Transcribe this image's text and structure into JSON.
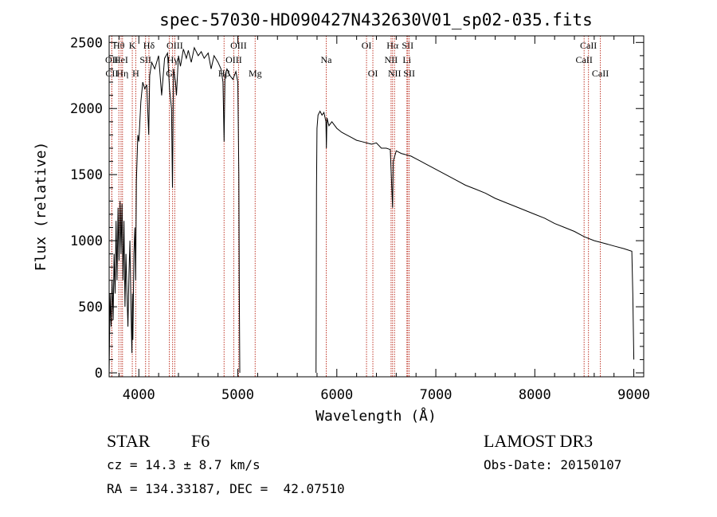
{
  "chart_data": {
    "type": "line",
    "title": "spec-57030-HD090427N432630V01_sp02-035.fits",
    "xlabel": "Wavelength (Å)",
    "ylabel": "Flux (relative)",
    "xlim": [
      3700,
      9100
    ],
    "ylim": [
      -30,
      2550
    ],
    "xticks": [
      4000,
      5000,
      6000,
      7000,
      8000,
      9000
    ],
    "yticks": [
      0,
      500,
      1000,
      1500,
      2000,
      2500
    ],
    "grid": false,
    "series": [
      {
        "name": "spectrum-blue",
        "x": [
          3700,
          3710,
          3720,
          3730,
          3740,
          3750,
          3760,
          3770,
          3780,
          3790,
          3800,
          3810,
          3820,
          3830,
          3840,
          3850,
          3860,
          3870,
          3880,
          3890,
          3900,
          3910,
          3920,
          3930,
          3935,
          3940,
          3950,
          3960,
          3968,
          3975,
          3990,
          4000,
          4020,
          4040,
          4060,
          4080,
          4100,
          4110,
          4130,
          4160,
          4200,
          4230,
          4260,
          4290,
          4310,
          4330,
          4340,
          4350,
          4370,
          4380,
          4400,
          4420,
          4450,
          4480,
          4500,
          4530,
          4560,
          4600,
          4630,
          4660,
          4700,
          4730,
          4760,
          4800,
          4830,
          4850,
          4861,
          4870,
          4890,
          4920,
          4950,
          4980,
          5000,
          5010,
          5015,
          5020
        ],
        "y": [
          0,
          600,
          350,
          700,
          400,
          900,
          600,
          1150,
          700,
          1250,
          850,
          1300,
          900,
          1280,
          700,
          1150,
          500,
          900,
          600,
          350,
          750,
          1000,
          500,
          150,
          600,
          250,
          900,
          1100,
          700,
          1450,
          1800,
          1750,
          2050,
          2200,
          2150,
          2180,
          1800,
          2250,
          2350,
          2300,
          2400,
          2100,
          2380,
          2420,
          2150,
          2000,
          1400,
          2300,
          2200,
          2100,
          2400,
          2320,
          2450,
          2380,
          2440,
          2350,
          2460,
          2400,
          2430,
          2380,
          2420,
          2300,
          2400,
          2350,
          2300,
          2200,
          1750,
          2250,
          2300,
          2250,
          2220,
          2280,
          2200,
          1500,
          600,
          0
        ]
      },
      {
        "name": "spectrum-red",
        "x": [
          5790,
          5795,
          5800,
          5810,
          5830,
          5850,
          5870,
          5890,
          5895,
          5900,
          5920,
          5950,
          6000,
          6050,
          6100,
          6150,
          6200,
          6250,
          6300,
          6350,
          6400,
          6450,
          6500,
          6540,
          6555,
          6563,
          6570,
          6600,
          6650,
          6700,
          6750,
          6800,
          6850,
          6900,
          7000,
          7100,
          7200,
          7300,
          7400,
          7500,
          7600,
          7700,
          7800,
          7900,
          8000,
          8100,
          8200,
          8300,
          8400,
          8500,
          8600,
          8700,
          8800,
          8900,
          8980,
          8990,
          9000
        ],
        "y": [
          0,
          1400,
          1850,
          1950,
          1980,
          1950,
          1970,
          1900,
          1700,
          1930,
          1870,
          1900,
          1850,
          1820,
          1800,
          1780,
          1760,
          1750,
          1740,
          1730,
          1740,
          1700,
          1700,
          1690,
          1400,
          1250,
          1600,
          1680,
          1660,
          1650,
          1640,
          1620,
          1600,
          1580,
          1540,
          1500,
          1460,
          1420,
          1390,
          1360,
          1320,
          1290,
          1260,
          1230,
          1200,
          1170,
          1130,
          1100,
          1070,
          1030,
          1000,
          980,
          960,
          940,
          920,
          600,
          100
        ]
      }
    ],
    "lines": [
      {
        "label": "Hθ",
        "wl": 3798,
        "row": 0
      },
      {
        "label": "OII",
        "wl": 3727,
        "row": 1
      },
      {
        "label": "CII",
        "wl": 3727,
        "row": 2
      },
      {
        "label": "HeI",
        "wl": 3820,
        "row": 1
      },
      {
        "label": "Hη",
        "wl": 3835,
        "row": 2
      },
      {
        "label": "K",
        "wl": 3934,
        "row": 0
      },
      {
        "label": "SII",
        "wl": 4068,
        "row": 1
      },
      {
        "label": "H",
        "wl": 3969,
        "row": 2
      },
      {
        "label": "Hδ",
        "wl": 4102,
        "row": 0
      },
      {
        "label": "OIII",
        "wl": 4363,
        "row": 0
      },
      {
        "label": "Hγ",
        "wl": 4341,
        "row": 1
      },
      {
        "label": "G",
        "wl": 4308,
        "row": 2
      },
      {
        "label": "Hβ",
        "wl": 4861,
        "row": 2
      },
      {
        "label": "OIII",
        "wl": 4959,
        "row": 1
      },
      {
        "label": "OIII",
        "wl": 5007,
        "row": 0
      },
      {
        "label": "Mg",
        "wl": 5175,
        "row": 2
      },
      {
        "label": "Na",
        "wl": 5893,
        "row": 1
      },
      {
        "label": "OI",
        "wl": 6300,
        "row": 0
      },
      {
        "label": "OI",
        "wl": 6364,
        "row": 2
      },
      {
        "label": "Hα",
        "wl": 6563,
        "row": 0
      },
      {
        "label": "NII",
        "wl": 6548,
        "row": 1
      },
      {
        "label": "NII",
        "wl": 6583,
        "row": 2
      },
      {
        "label": "SII",
        "wl": 6716,
        "row": 0
      },
      {
        "label": "Li",
        "wl": 6708,
        "row": 1
      },
      {
        "label": "SII",
        "wl": 6731,
        "row": 2
      },
      {
        "label": "CaII",
        "wl": 8542,
        "row": 0
      },
      {
        "label": "CaII",
        "wl": 8498,
        "row": 1
      },
      {
        "label": "CaII",
        "wl": 8662,
        "row": 2
      }
    ],
    "line_color": "#c0392b"
  },
  "footer": {
    "object_class": "STAR",
    "subclass": "F6",
    "survey": "LAMOST DR3",
    "cz": "cz = 14.3 ± 8.7 km/s",
    "obs_date": "Obs-Date: 20150107",
    "coords": "RA = 134.33187, DEC =  42.07510"
  }
}
